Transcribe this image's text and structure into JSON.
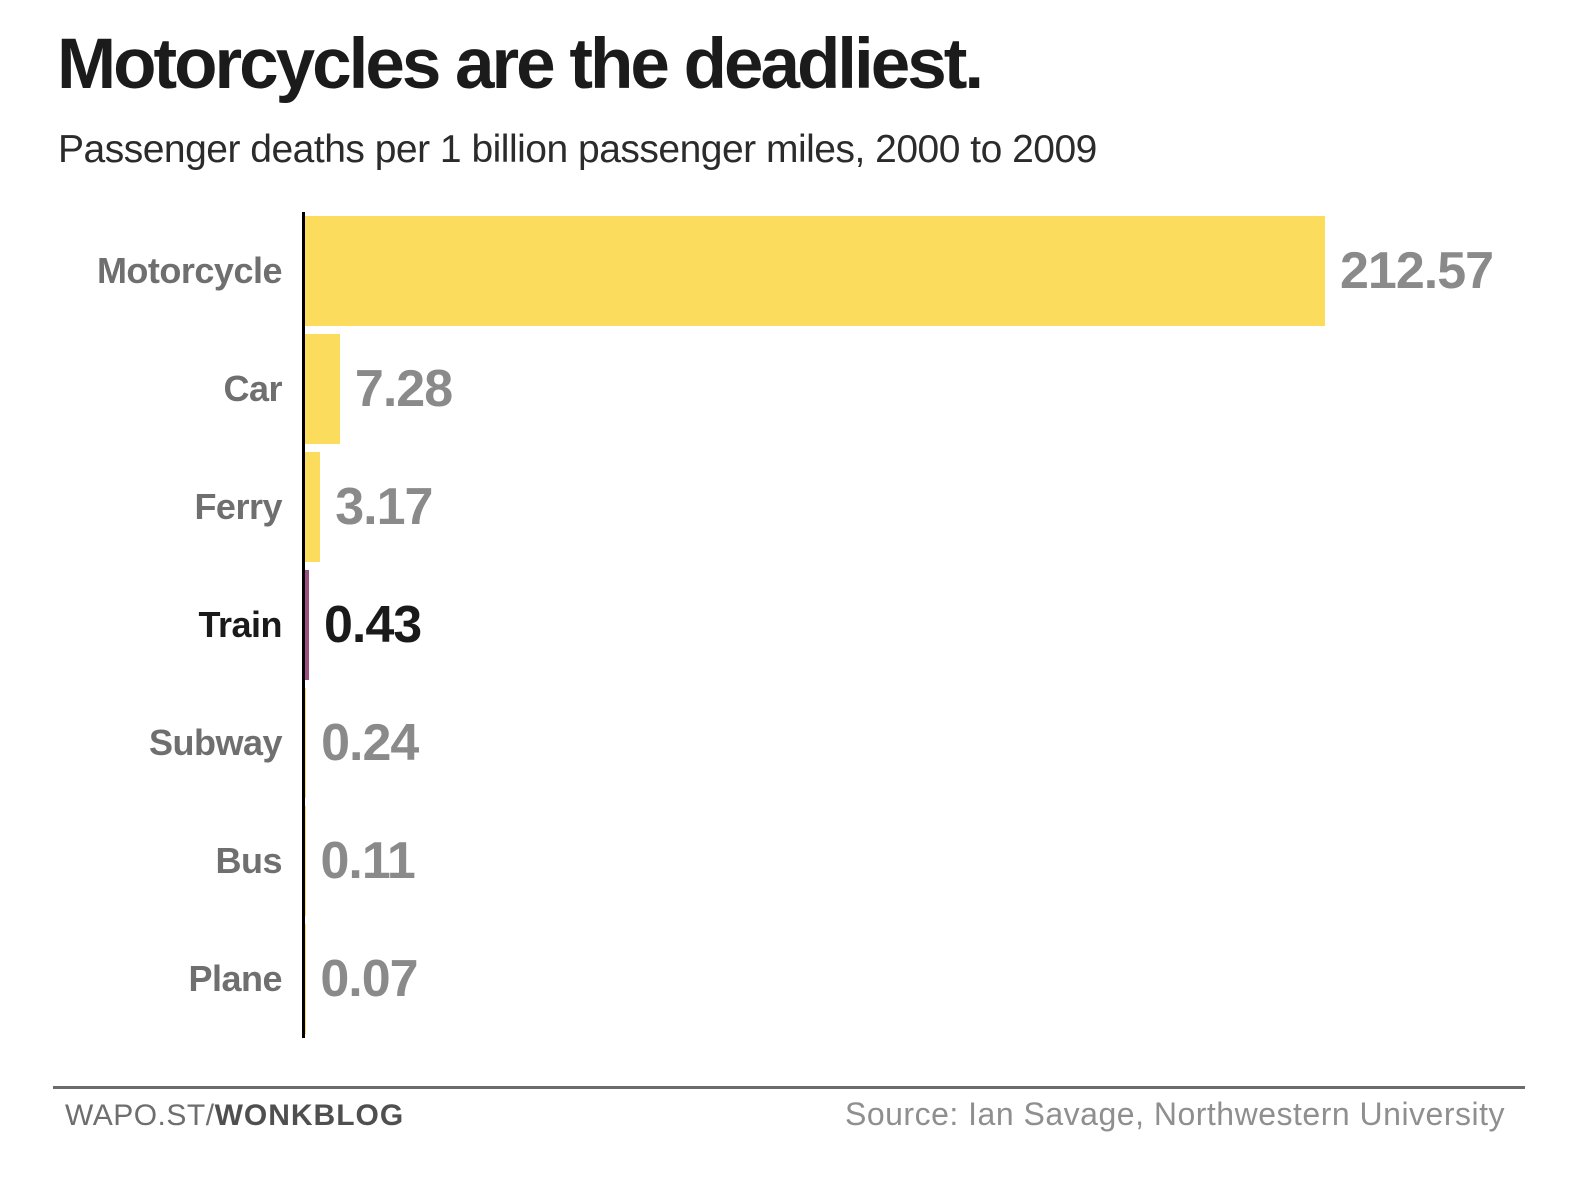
{
  "page": {
    "background": "#FFFFFF"
  },
  "chart_data": {
    "type": "bar",
    "orientation": "horizontal",
    "title": "Motorcycles are the deadliest.",
    "subtitle": "Passenger deaths per 1 billion passenger miles, 2000 to 2009",
    "categories": [
      "Motorcycle",
      "Car",
      "Ferry",
      "Train",
      "Subway",
      "Bus",
      "Plane"
    ],
    "values": [
      212.57,
      7.28,
      3.17,
      0.43,
      0.24,
      0.11,
      0.07
    ],
    "value_labels": [
      "212.57",
      "7.28",
      "3.17",
      "0.43",
      "0.24",
      "0.11",
      "0.07"
    ],
    "xlim": [
      0,
      212.57
    ],
    "grid": false,
    "legend": false,
    "highlight_category": "Train",
    "colors": {
      "bar": "#FBDC5D",
      "highlight_bar": "#9B4E82",
      "category_label": "#6F6F6F",
      "value_label": "#8A8A8A",
      "highlight_label": "#1A1A1A",
      "axis": "#000000",
      "title": "#1B1B1B",
      "subtitle": "#2B2B2B"
    }
  },
  "footer": {
    "brand_regular": "WAPO.ST/",
    "brand_bold": "WONKBLOG",
    "source": "Source: Ian Savage, Northwestern University",
    "colors": {
      "rule": "#6B6B6B",
      "brand": "#6E6E6E",
      "brand_bold": "#4F4F4F",
      "source": "#8F8F8F"
    }
  }
}
